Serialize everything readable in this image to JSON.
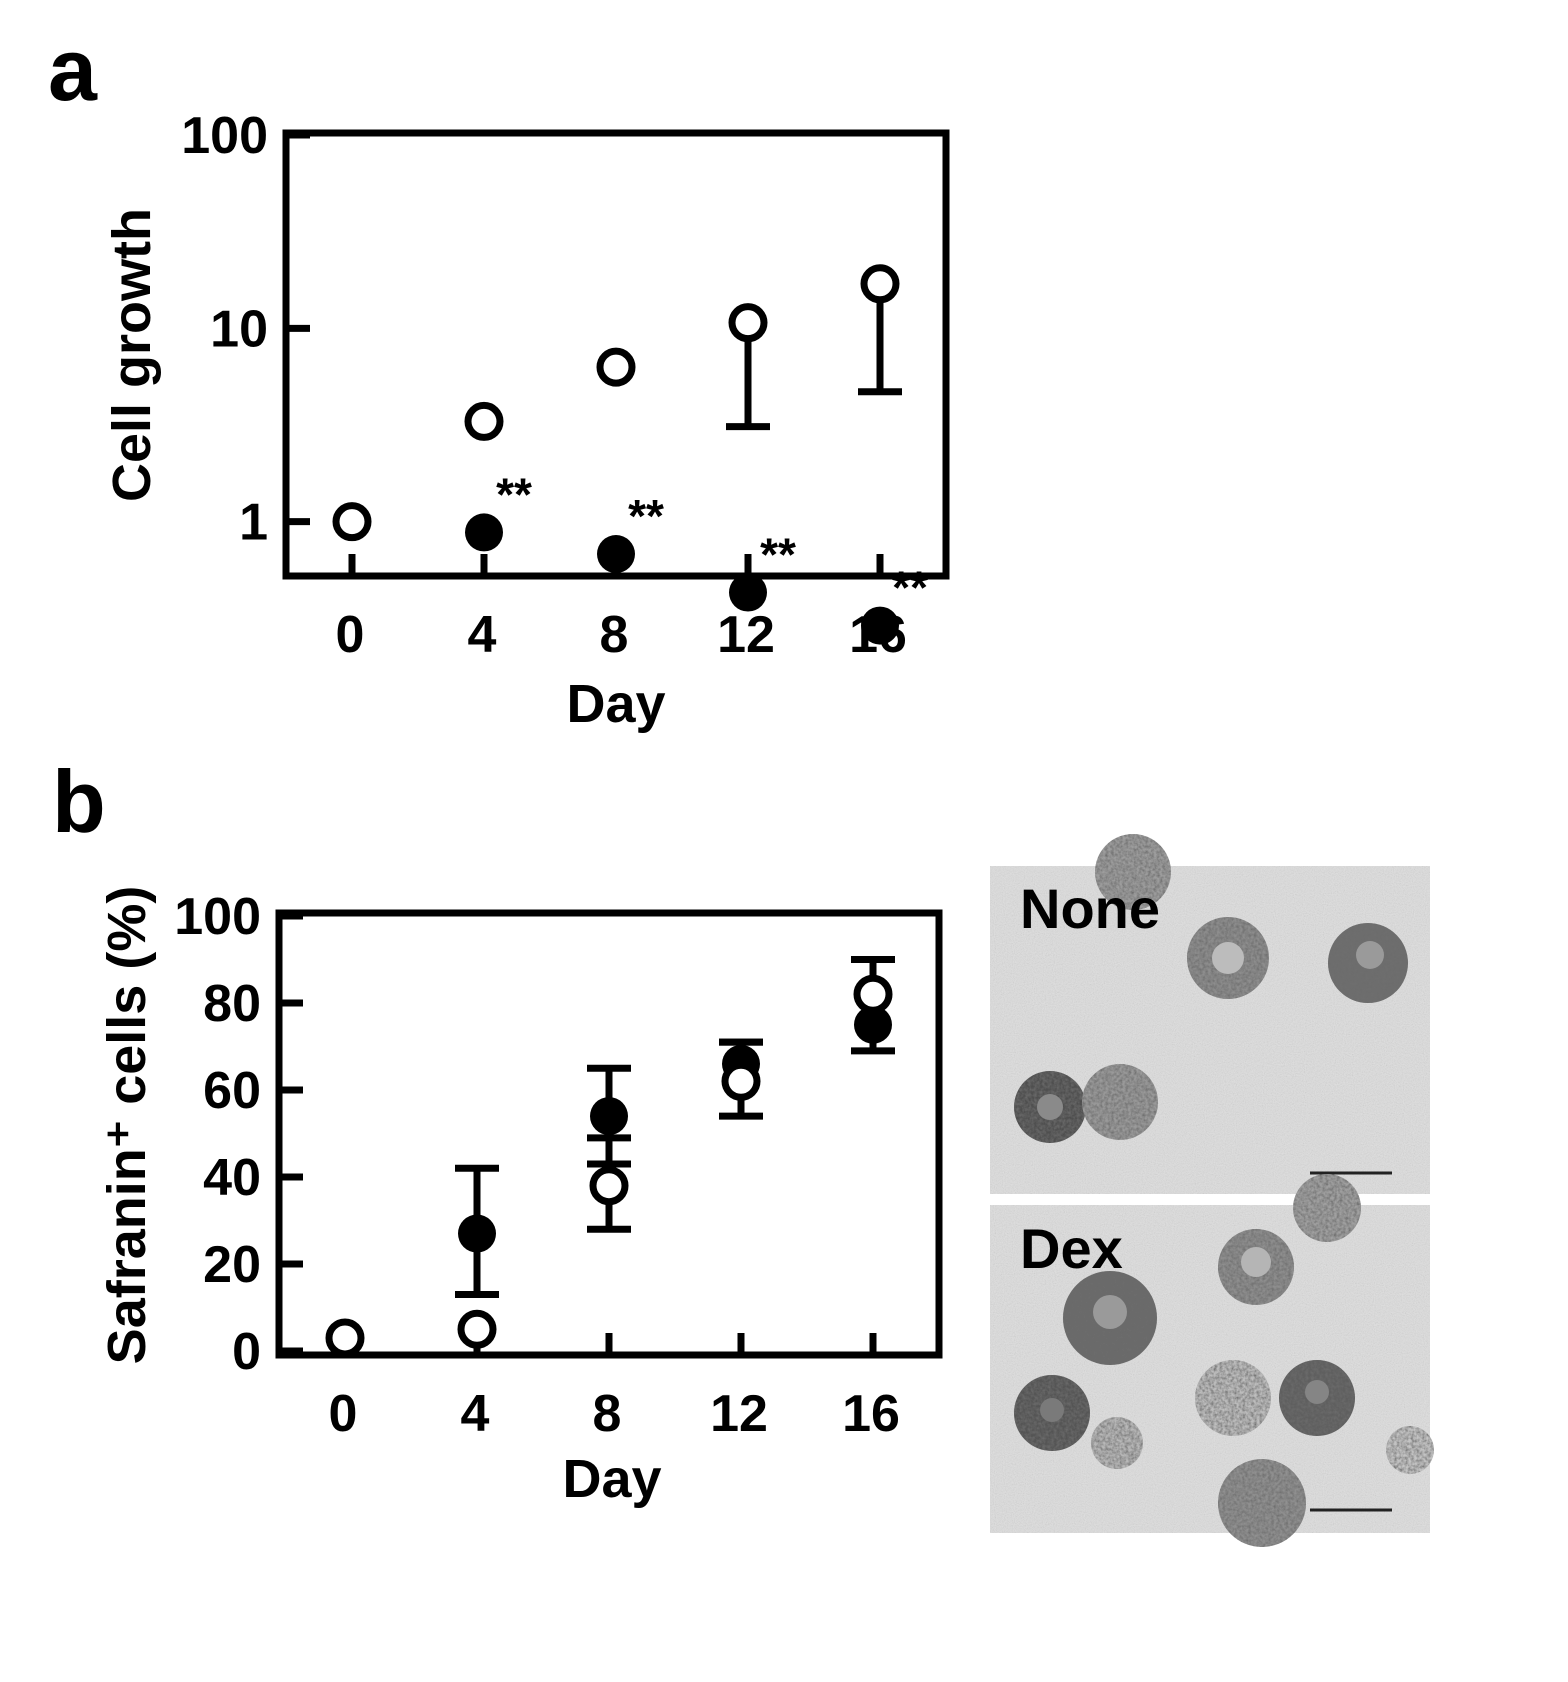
{
  "panels": {
    "a_letter": "a",
    "b_letter": "b"
  },
  "chart_data": [
    {
      "panel": "a",
      "type": "scatter",
      "xlabel": "Day",
      "ylabel": "Cell growth",
      "yscale": "log",
      "ylim": [
        0.1,
        100
      ],
      "y_ticks": [
        "1",
        "10",
        "100"
      ],
      "x_ticks": [
        "0",
        "4",
        "8",
        "12",
        "16"
      ],
      "x": [
        0,
        4,
        8,
        12,
        16
      ],
      "series": [
        {
          "marker": "open-circle",
          "values": [
            1.0,
            3.3,
            6.3,
            10.7,
            17.0
          ],
          "err_low": [
            0,
            0,
            0,
            7.6,
            12.3
          ],
          "err_high": [
            0,
            0,
            0,
            0,
            0
          ]
        },
        {
          "marker": "filled-circle",
          "values": [
            1.0,
            0.88,
            0.68,
            0.43,
            0.29
          ],
          "err_low": [
            0,
            0,
            0,
            0,
            0
          ],
          "err_high": [
            0,
            0,
            0,
            0,
            0
          ],
          "annotations": [
            "",
            "**",
            "**",
            "**",
            "**"
          ]
        }
      ],
      "grid": false
    },
    {
      "panel": "b",
      "type": "scatter",
      "xlabel": "Day",
      "ylabel": "Safranin⁺ cells (%)",
      "ylim": [
        0,
        100
      ],
      "y_ticks": [
        "0",
        "20",
        "40",
        "60",
        "80",
        "100"
      ],
      "x_ticks": [
        "0",
        "4",
        "8",
        "12",
        "16"
      ],
      "x": [
        0,
        4,
        8,
        12,
        16
      ],
      "series": [
        {
          "marker": "open-circle",
          "values": [
            3,
            5,
            38,
            62,
            82
          ],
          "err_low": [
            0,
            0,
            10,
            8,
            0
          ],
          "err_high": [
            0,
            0,
            11,
            9,
            8
          ]
        },
        {
          "marker": "filled-circle",
          "values": [
            3,
            27,
            54,
            66,
            75
          ],
          "err_low": [
            0,
            14,
            11,
            0,
            6
          ],
          "err_high": [
            0,
            15,
            11,
            5,
            0
          ]
        }
      ],
      "grid": false
    }
  ],
  "micrographs": [
    {
      "label": "None"
    },
    {
      "label": "Dex"
    }
  ]
}
